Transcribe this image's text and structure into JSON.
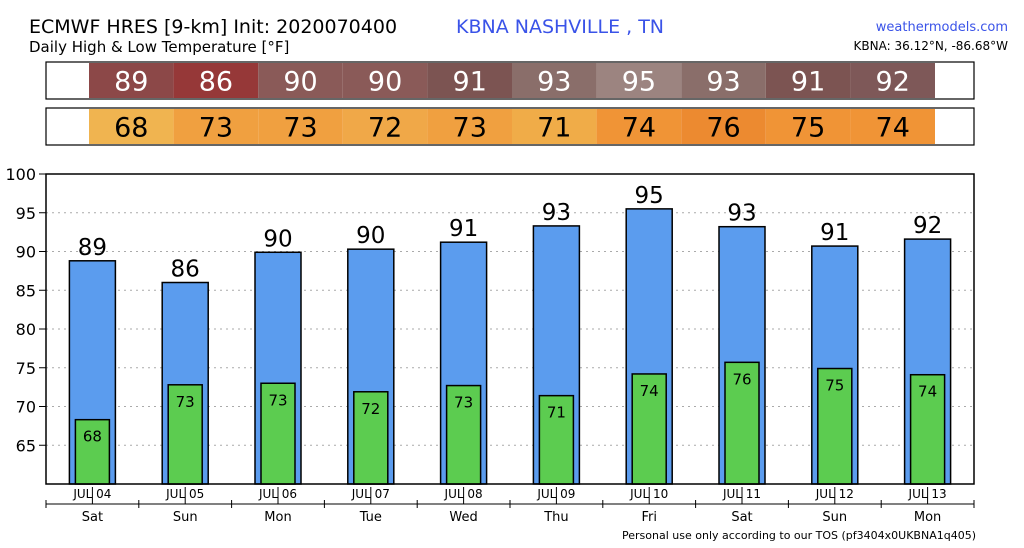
{
  "header": {
    "model_title": "ECMWF HRES [9-km] Init: 2020070400",
    "subtitle": "Daily High & Low Temperature [°F]",
    "station": "KBNA NASHVILLE      , TN",
    "brand": "weathermodels.com",
    "coords": "KBNA: 36.12°N, -86.68°W"
  },
  "footer": {
    "tos": "Personal use only according to our TOS (pf3404x0UKBNA1q405)"
  },
  "strips": {
    "high_colors": [
      "#8c4848",
      "#963838",
      "#8a5a58",
      "#8a5a58",
      "#7c5452",
      "#8a6e6a",
      "#9c8480",
      "#8a6e6a",
      "#7c5452",
      "#7e5858"
    ],
    "low_colors": [
      "#f0b450",
      "#f0a040",
      "#f0a040",
      "#f0a848",
      "#f0a040",
      "#f0ac48",
      "#f09436",
      "#ec8a30",
      "#f09436",
      "#f09436"
    ]
  },
  "chart_data": {
    "type": "bar",
    "title": "Daily High & Low Temperature [°F]",
    "xlabel": "",
    "ylabel": "",
    "ylim": [
      60,
      100
    ],
    "yticks": [
      65,
      70,
      75,
      80,
      85,
      90,
      95,
      100
    ],
    "grid": true,
    "categories": [
      "JUL 04",
      "JUL 05",
      "JUL 06",
      "JUL 07",
      "JUL 08",
      "JUL 09",
      "JUL 10",
      "JUL 11",
      "JUL 12",
      "JUL 13"
    ],
    "weekdays": [
      "Sat",
      "Sun",
      "Mon",
      "Tue",
      "Wed",
      "Thu",
      "Fri",
      "Sat",
      "Sun",
      "Mon"
    ],
    "series": [
      {
        "name": "",
        "values": [
          88.8,
          86.0,
          89.9,
          90.3,
          91.2,
          93.3,
          95.5,
          93.2,
          90.7,
          91.6
        ],
        "labels": [
          "89",
          "86",
          "90",
          "90",
          "91",
          "93",
          "95",
          "93",
          "91",
          "92"
        ],
        "color": "#5b9cee"
      },
      {
        "name": "",
        "values": [
          68.3,
          72.8,
          73.0,
          71.9,
          72.7,
          71.4,
          74.2,
          75.7,
          74.9,
          74.1
        ],
        "labels": [
          "68",
          "73",
          "73",
          "72",
          "73",
          "71",
          "74",
          "76",
          "75",
          "74"
        ],
        "color": "#5ccc50"
      }
    ]
  }
}
